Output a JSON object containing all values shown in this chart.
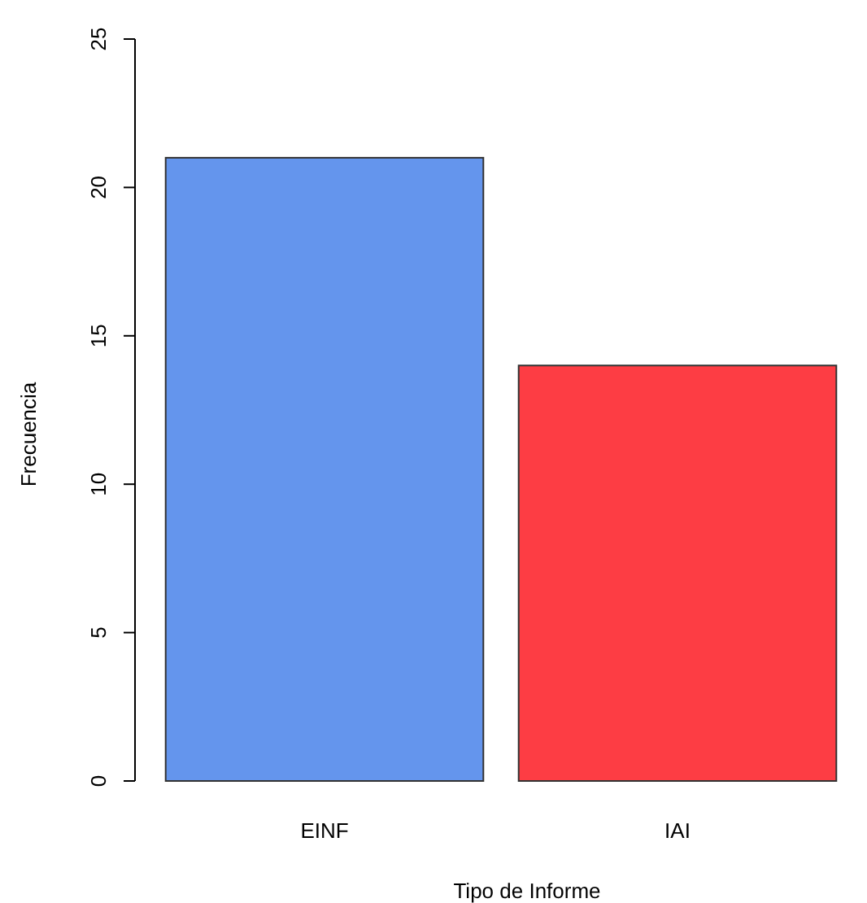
{
  "chart_data": {
    "type": "bar",
    "xlabel": "Tipo de Informe",
    "ylabel": "Frecuencia",
    "categories": [
      "EINF",
      "IAI"
    ],
    "values": [
      21,
      14
    ],
    "colors": [
      "#6495ed",
      "#fd3d44"
    ],
    "ylim": [
      0,
      25
    ],
    "yticks": [
      0,
      5,
      10,
      15,
      20,
      25
    ]
  }
}
